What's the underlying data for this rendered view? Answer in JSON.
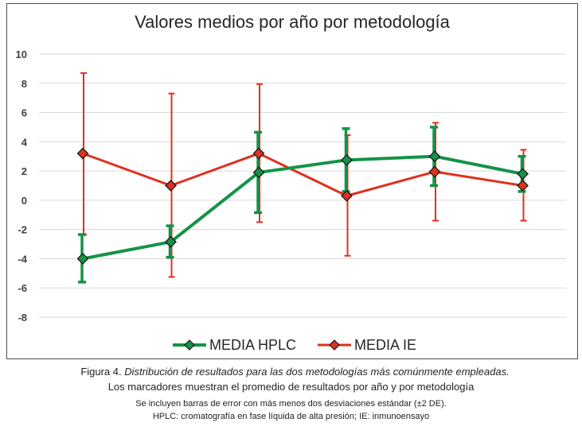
{
  "chart_data": {
    "type": "line",
    "title": "Valores medios por año por metodología",
    "xlabel": "",
    "ylabel": "",
    "ylim": [
      -8,
      10
    ],
    "yticks": [
      10,
      8,
      6,
      4,
      2,
      0,
      -2,
      -4,
      -6,
      -8
    ],
    "n_points": 6,
    "grid": true,
    "legend_position": "bottom",
    "series": [
      {
        "name": "MEDIA HPLC",
        "color": "#149347",
        "values": [
          -4.0,
          -2.85,
          1.9,
          2.75,
          3.0,
          1.8
        ],
        "error_low": [
          -5.6,
          -3.9,
          -0.85,
          0.6,
          1.0,
          0.6
        ],
        "error_high": [
          -2.35,
          -1.75,
          4.65,
          4.9,
          5.0,
          3.0
        ]
      },
      {
        "name": "MEDIA IE",
        "color": "#e0301e",
        "values": [
          3.2,
          1.0,
          3.2,
          0.3,
          1.95,
          1.0
        ],
        "error_low": [
          -2.35,
          -5.25,
          -1.5,
          -3.8,
          -1.4,
          -1.4
        ],
        "error_high": [
          8.7,
          7.3,
          7.95,
          4.45,
          5.3,
          3.45
        ]
      }
    ]
  },
  "caption": {
    "prefix": "Figura 4.",
    "title": "Distribución de resultados para las dos metodologías más comúnmente empleadas.",
    "line2": "Los marcadores muestran el  promedio de resultados por año y por metodología",
    "line3": "Se incluyen barras de error con más menos dos desviaciones estándar (±2 DE).",
    "line4": "HPLC: cromatografía en fase líquida de alta presión; IE: inmunoensayo"
  }
}
